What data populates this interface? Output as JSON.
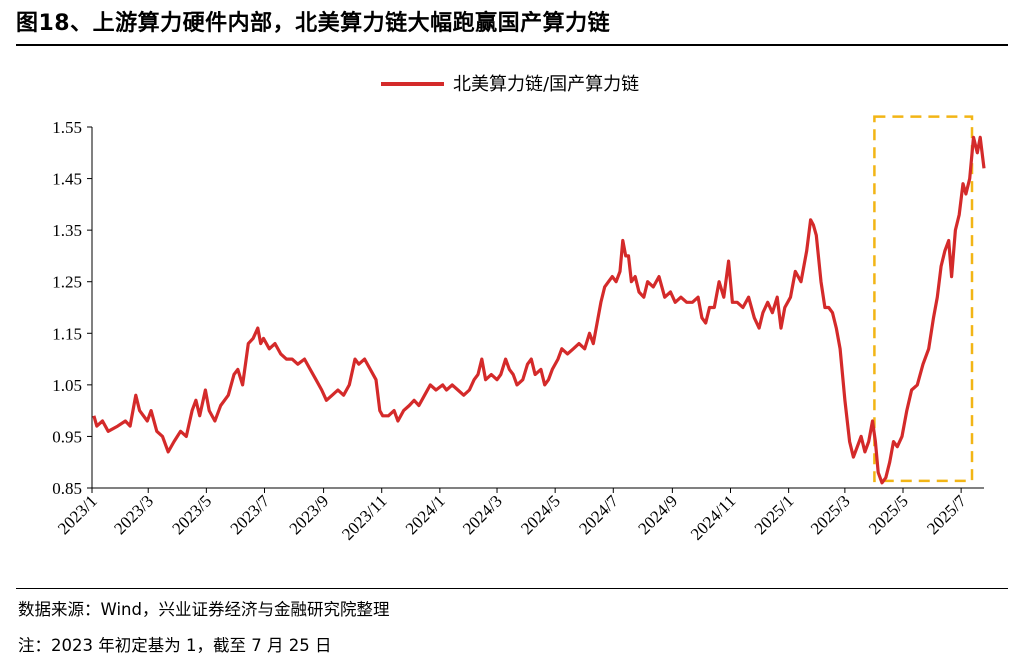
{
  "figure": {
    "title": "图18、上游算力硬件内部，北美算力链大幅跑赢国产算力链",
    "source": "数据来源：Wind，兴业证券经济与金融研究院整理",
    "note": "注：2023 年初定基为 1，截至 7 月 25 日"
  },
  "colors": {
    "series": "#d42a2a",
    "highlight": "#f2b515",
    "axis": "#000000"
  },
  "chart_data": {
    "type": "line",
    "title": "",
    "xlabel": "",
    "ylabel": "",
    "legend_position": "top-center",
    "grid": false,
    "ylim": [
      0.85,
      1.55
    ],
    "yticks": [
      "0.85",
      "0.95",
      "1.05",
      "1.15",
      "1.25",
      "1.35",
      "1.45",
      "1.55"
    ],
    "xlim": [
      "2023-01-01",
      "2025-07-25"
    ],
    "xticks": [
      "2023/1",
      "2023/3",
      "2023/5",
      "2023/7",
      "2023/9",
      "2023/11",
      "2024/1",
      "2024/3",
      "2024/5",
      "2024/7",
      "2024/9",
      "2024/11",
      "2025/1",
      "2025/3",
      "2025/5",
      "2025/7"
    ],
    "highlight_box": {
      "x_start": "2025-04-01",
      "x_end": "2025-07-25",
      "y_start": 0.86,
      "y_end": 1.57,
      "style": "dashed"
    },
    "series": [
      {
        "name": "北美算力链/国产算力链",
        "points": [
          [
            "2023-01-03",
            0.99
          ],
          [
            "2023-01-06",
            0.97
          ],
          [
            "2023-01-12",
            0.98
          ],
          [
            "2023-01-18",
            0.96
          ],
          [
            "2023-01-28",
            0.97
          ],
          [
            "2023-02-05",
            0.98
          ],
          [
            "2023-02-10",
            0.97
          ],
          [
            "2023-02-16",
            1.03
          ],
          [
            "2023-02-20",
            1.0
          ],
          [
            "2023-02-28",
            0.98
          ],
          [
            "2023-03-04",
            1.0
          ],
          [
            "2023-03-10",
            0.96
          ],
          [
            "2023-03-16",
            0.95
          ],
          [
            "2023-03-22",
            0.92
          ],
          [
            "2023-03-28",
            0.94
          ],
          [
            "2023-04-04",
            0.96
          ],
          [
            "2023-04-10",
            0.95
          ],
          [
            "2023-04-16",
            1.0
          ],
          [
            "2023-04-20",
            1.02
          ],
          [
            "2023-04-24",
            0.99
          ],
          [
            "2023-04-30",
            1.04
          ],
          [
            "2023-05-04",
            1.0
          ],
          [
            "2023-05-10",
            0.98
          ],
          [
            "2023-05-16",
            1.01
          ],
          [
            "2023-05-24",
            1.03
          ],
          [
            "2023-05-30",
            1.07
          ],
          [
            "2023-06-03",
            1.08
          ],
          [
            "2023-06-08",
            1.05
          ],
          [
            "2023-06-14",
            1.13
          ],
          [
            "2023-06-19",
            1.14
          ],
          [
            "2023-06-24",
            1.16
          ],
          [
            "2023-06-27",
            1.13
          ],
          [
            "2023-06-30",
            1.14
          ],
          [
            "2023-07-06",
            1.12
          ],
          [
            "2023-07-12",
            1.13
          ],
          [
            "2023-07-18",
            1.11
          ],
          [
            "2023-07-24",
            1.1
          ],
          [
            "2023-07-30",
            1.1
          ],
          [
            "2023-08-05",
            1.09
          ],
          [
            "2023-08-12",
            1.1
          ],
          [
            "2023-08-18",
            1.08
          ],
          [
            "2023-08-24",
            1.06
          ],
          [
            "2023-08-30",
            1.04
          ],
          [
            "2023-09-04",
            1.02
          ],
          [
            "2023-09-10",
            1.03
          ],
          [
            "2023-09-16",
            1.04
          ],
          [
            "2023-09-22",
            1.03
          ],
          [
            "2023-09-28",
            1.05
          ],
          [
            "2023-10-04",
            1.1
          ],
          [
            "2023-10-08",
            1.09
          ],
          [
            "2023-10-14",
            1.1
          ],
          [
            "2023-10-20",
            1.08
          ],
          [
            "2023-10-26",
            1.06
          ],
          [
            "2023-10-30",
            1.0
          ],
          [
            "2023-11-02",
            0.99
          ],
          [
            "2023-11-08",
            0.99
          ],
          [
            "2023-11-14",
            1.0
          ],
          [
            "2023-11-18",
            0.98
          ],
          [
            "2023-11-24",
            1.0
          ],
          [
            "2023-11-30",
            1.01
          ],
          [
            "2023-12-05",
            1.02
          ],
          [
            "2023-12-10",
            1.01
          ],
          [
            "2023-12-16",
            1.03
          ],
          [
            "2023-12-22",
            1.05
          ],
          [
            "2023-12-28",
            1.04
          ],
          [
            "2024-01-04",
            1.05
          ],
          [
            "2024-01-08",
            1.04
          ],
          [
            "2024-01-14",
            1.05
          ],
          [
            "2024-01-20",
            1.04
          ],
          [
            "2024-01-26",
            1.03
          ],
          [
            "2024-02-01",
            1.04
          ],
          [
            "2024-02-06",
            1.06
          ],
          [
            "2024-02-10",
            1.07
          ],
          [
            "2024-02-14",
            1.1
          ],
          [
            "2024-02-18",
            1.06
          ],
          [
            "2024-02-24",
            1.07
          ],
          [
            "2024-03-01",
            1.06
          ],
          [
            "2024-03-05",
            1.07
          ],
          [
            "2024-03-10",
            1.1
          ],
          [
            "2024-03-14",
            1.08
          ],
          [
            "2024-03-18",
            1.07
          ],
          [
            "2024-03-22",
            1.05
          ],
          [
            "2024-03-28",
            1.06
          ],
          [
            "2024-04-02",
            1.09
          ],
          [
            "2024-04-06",
            1.1
          ],
          [
            "2024-04-10",
            1.07
          ],
          [
            "2024-04-16",
            1.08
          ],
          [
            "2024-04-20",
            1.05
          ],
          [
            "2024-04-24",
            1.06
          ],
          [
            "2024-04-28",
            1.08
          ],
          [
            "2024-05-04",
            1.1
          ],
          [
            "2024-05-08",
            1.12
          ],
          [
            "2024-05-14",
            1.11
          ],
          [
            "2024-05-20",
            1.12
          ],
          [
            "2024-05-26",
            1.13
          ],
          [
            "2024-06-01",
            1.12
          ],
          [
            "2024-06-06",
            1.15
          ],
          [
            "2024-06-10",
            1.13
          ],
          [
            "2024-06-14",
            1.17
          ],
          [
            "2024-06-18",
            1.21
          ],
          [
            "2024-06-22",
            1.24
          ],
          [
            "2024-06-26",
            1.25
          ],
          [
            "2024-06-30",
            1.26
          ],
          [
            "2024-07-04",
            1.25
          ],
          [
            "2024-07-08",
            1.27
          ],
          [
            "2024-07-11",
            1.33
          ],
          [
            "2024-07-14",
            1.3
          ],
          [
            "2024-07-17",
            1.3
          ],
          [
            "2024-07-20",
            1.25
          ],
          [
            "2024-07-24",
            1.26
          ],
          [
            "2024-07-28",
            1.23
          ],
          [
            "2024-08-02",
            1.22
          ],
          [
            "2024-08-06",
            1.25
          ],
          [
            "2024-08-12",
            1.24
          ],
          [
            "2024-08-18",
            1.26
          ],
          [
            "2024-08-24",
            1.22
          ],
          [
            "2024-08-30",
            1.23
          ],
          [
            "2024-09-04",
            1.21
          ],
          [
            "2024-09-10",
            1.22
          ],
          [
            "2024-09-16",
            1.21
          ],
          [
            "2024-09-22",
            1.21
          ],
          [
            "2024-09-28",
            1.22
          ],
          [
            "2024-10-02",
            1.18
          ],
          [
            "2024-10-06",
            1.17
          ],
          [
            "2024-10-10",
            1.2
          ],
          [
            "2024-10-15",
            1.2
          ],
          [
            "2024-10-20",
            1.25
          ],
          [
            "2024-10-25",
            1.22
          ],
          [
            "2024-10-30",
            1.29
          ],
          [
            "2024-11-03",
            1.21
          ],
          [
            "2024-11-08",
            1.21
          ],
          [
            "2024-11-14",
            1.2
          ],
          [
            "2024-11-20",
            1.22
          ],
          [
            "2024-11-26",
            1.18
          ],
          [
            "2024-12-01",
            1.16
          ],
          [
            "2024-12-05",
            1.19
          ],
          [
            "2024-12-10",
            1.21
          ],
          [
            "2024-12-15",
            1.19
          ],
          [
            "2024-12-20",
            1.22
          ],
          [
            "2024-12-24",
            1.16
          ],
          [
            "2024-12-28",
            1.2
          ],
          [
            "2025-01-03",
            1.22
          ],
          [
            "2025-01-08",
            1.27
          ],
          [
            "2025-01-14",
            1.25
          ],
          [
            "2025-01-20",
            1.31
          ],
          [
            "2025-01-24",
            1.37
          ],
          [
            "2025-01-27",
            1.36
          ],
          [
            "2025-01-30",
            1.34
          ],
          [
            "2025-02-04",
            1.25
          ],
          [
            "2025-02-08",
            1.2
          ],
          [
            "2025-02-12",
            1.2
          ],
          [
            "2025-02-16",
            1.19
          ],
          [
            "2025-02-20",
            1.16
          ],
          [
            "2025-02-24",
            1.12
          ],
          [
            "2025-03-01",
            1.02
          ],
          [
            "2025-03-06",
            0.94
          ],
          [
            "2025-03-10",
            0.91
          ],
          [
            "2025-03-14",
            0.93
          ],
          [
            "2025-03-18",
            0.95
          ],
          [
            "2025-03-22",
            0.92
          ],
          [
            "2025-03-26",
            0.94
          ],
          [
            "2025-03-30",
            0.98
          ],
          [
            "2025-04-02",
            0.94
          ],
          [
            "2025-04-05",
            0.88
          ],
          [
            "2025-04-09",
            0.86
          ],
          [
            "2025-04-13",
            0.87
          ],
          [
            "2025-04-17",
            0.9
          ],
          [
            "2025-04-21",
            0.94
          ],
          [
            "2025-04-25",
            0.93
          ],
          [
            "2025-04-30",
            0.95
          ],
          [
            "2025-05-05",
            1.0
          ],
          [
            "2025-05-10",
            1.04
          ],
          [
            "2025-05-16",
            1.05
          ],
          [
            "2025-05-22",
            1.09
          ],
          [
            "2025-05-28",
            1.12
          ],
          [
            "2025-06-02",
            1.18
          ],
          [
            "2025-06-06",
            1.22
          ],
          [
            "2025-06-10",
            1.28
          ],
          [
            "2025-06-14",
            1.31
          ],
          [
            "2025-06-18",
            1.33
          ],
          [
            "2025-06-21",
            1.26
          ],
          [
            "2025-06-25",
            1.35
          ],
          [
            "2025-06-29",
            1.38
          ],
          [
            "2025-07-03",
            1.44
          ],
          [
            "2025-07-06",
            1.42
          ],
          [
            "2025-07-10",
            1.45
          ],
          [
            "2025-07-14",
            1.53
          ],
          [
            "2025-07-18",
            1.5
          ],
          [
            "2025-07-21",
            1.53
          ],
          [
            "2025-07-25",
            1.47
          ]
        ]
      }
    ]
  }
}
